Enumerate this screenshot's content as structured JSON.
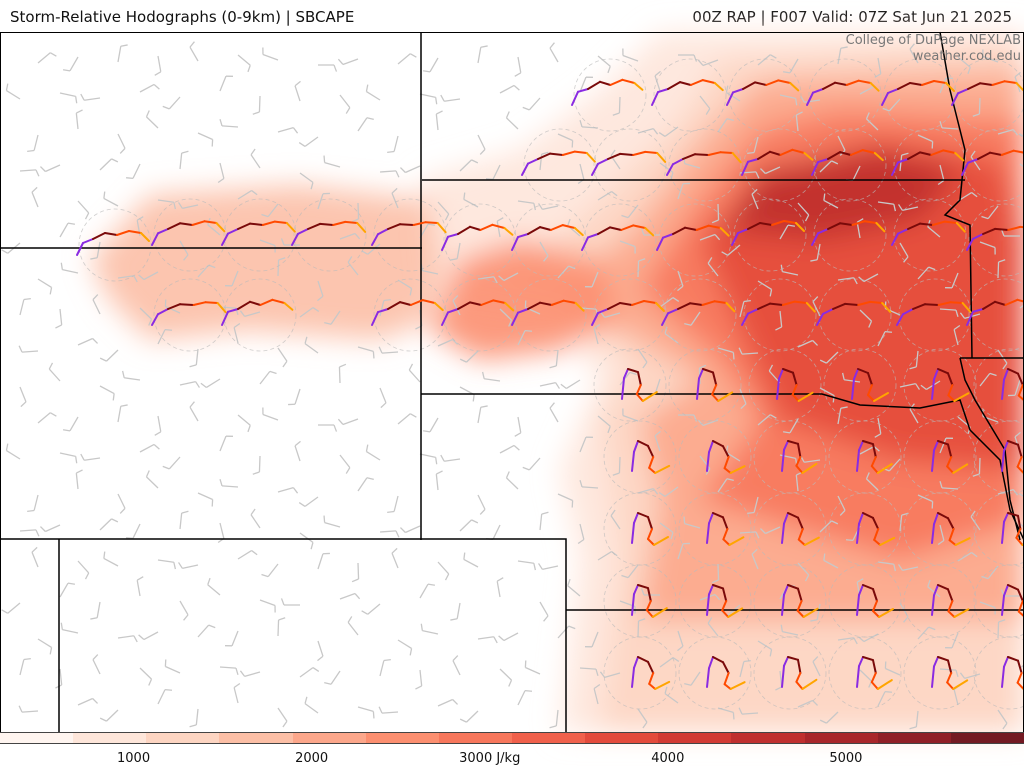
{
  "header": {
    "title_left": "Storm-Relative Hodographs (0-9km) | SBCAPE",
    "title_right": "00Z RAP | F007 Valid: 07Z Sat Jun 21 2025"
  },
  "credits": {
    "line1": "College of DuPage NEXLAB",
    "line2": "weather.cod.edu"
  },
  "colorbar": {
    "unit": "J/kg",
    "ticks": [
      {
        "value": 1000,
        "label": "1000"
      },
      {
        "value": 2000,
        "label": "2000"
      },
      {
        "value": 3000,
        "label": "3000 J/kg"
      },
      {
        "value": 4000,
        "label": "4000"
      },
      {
        "value": 5000,
        "label": "5000"
      }
    ],
    "range": [
      250,
      6000
    ],
    "colors": [
      "#fff5f0",
      "#fee6da",
      "#fdd5c2",
      "#fcbfa6",
      "#fca78b",
      "#fc8f70",
      "#f7775c",
      "#f0604b",
      "#e34a3b",
      "#d23a33",
      "#bf2f2e",
      "#a8262a",
      "#8f1f26",
      "#731a22"
    ]
  },
  "colors": {
    "hodo_low": "#8a2be2",
    "hodo_mid": "#7a0a0a",
    "hodo_upper": "#ff4a00",
    "hodo_top": "#ffa500",
    "barb": "#c8c8c8",
    "state_line": "#000000"
  }
}
